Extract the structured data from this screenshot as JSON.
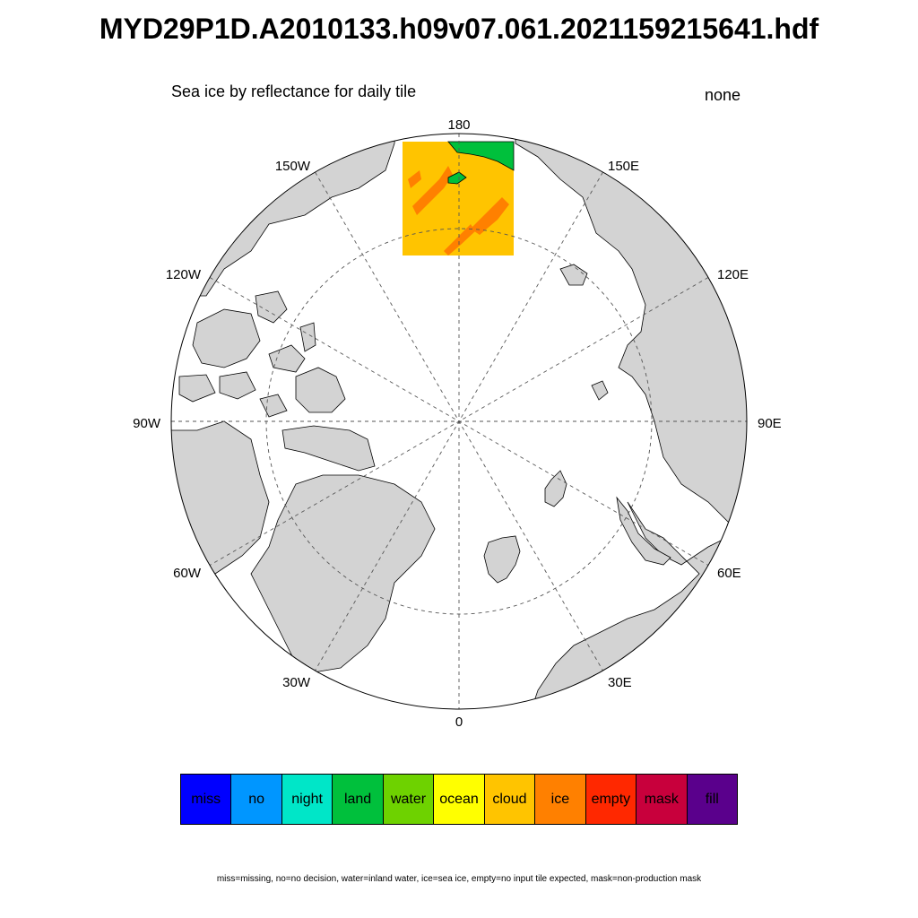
{
  "title": "MYD29P1D.A2010133.h09v07.061.2021159215641.hdf",
  "subtitle": "Sea ice by reflectance for daily tile",
  "units": "none",
  "map": {
    "projection": "north-polar-stereographic",
    "land_color": "#d3d3d3",
    "ocean_color": "#ffffff",
    "lon_labels": [
      {
        "name": "lon-label-180",
        "text": "180"
      },
      {
        "name": "lon-label-150e",
        "text": "150E"
      },
      {
        "name": "lon-label-120e",
        "text": "120E"
      },
      {
        "name": "lon-label-90e",
        "text": "90E"
      },
      {
        "name": "lon-label-60e",
        "text": "60E"
      },
      {
        "name": "lon-label-30e",
        "text": "30E"
      },
      {
        "name": "lon-label-0",
        "text": "0"
      },
      {
        "name": "lon-label-30w",
        "text": "30W"
      },
      {
        "name": "lon-label-60w",
        "text": "60W"
      },
      {
        "name": "lon-label-90w",
        "text": "90W"
      },
      {
        "name": "lon-label-120w",
        "text": "120W"
      },
      {
        "name": "lon-label-150w",
        "text": "150W"
      }
    ],
    "tile_colors": {
      "cloud": "#ffc400",
      "ice": "#ff8000",
      "land": "#00c03c"
    }
  },
  "legend": [
    {
      "label": "miss",
      "color": "#0000ff"
    },
    {
      "label": "no",
      "color": "#0096ff"
    },
    {
      "label": "night",
      "color": "#00e6c8"
    },
    {
      "label": "land",
      "color": "#00c03c"
    },
    {
      "label": "water",
      "color": "#6ed200"
    },
    {
      "label": "ocean",
      "color": "#ffff00"
    },
    {
      "label": "cloud",
      "color": "#ffc400"
    },
    {
      "label": "ice",
      "color": "#ff8000"
    },
    {
      "label": "empty",
      "color": "#ff2800"
    },
    {
      "label": "mask",
      "color": "#c8003c"
    },
    {
      "label": "fill",
      "color": "#5a008c"
    }
  ],
  "footnote": "miss=missing, no=no decision, water=inland water, ice=sea ice, empty=no input tile expected, mask=non-production mask"
}
